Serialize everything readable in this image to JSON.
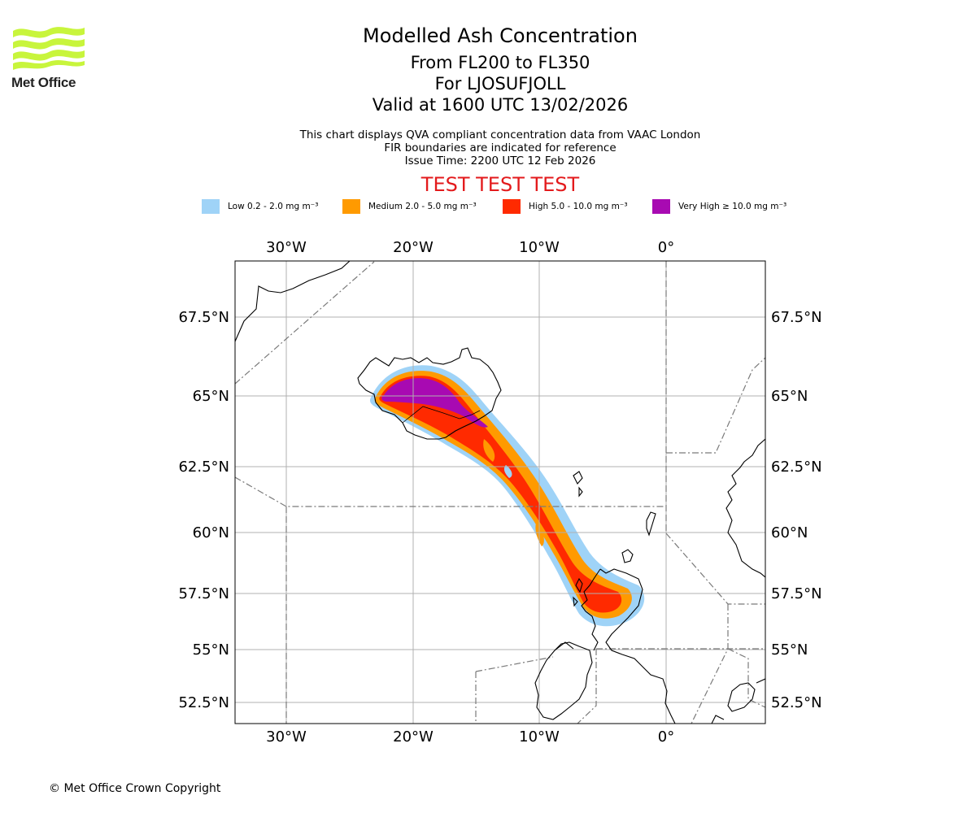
{
  "logo": {
    "text": "Met Office",
    "color": "#c8f53c"
  },
  "title": "Modelled Ash Concentration",
  "flight_levels": "From FL200 to FL350",
  "volcano": "For LJOSUFJOLL",
  "valid": "Valid at 1600 UTC 13/02/2026",
  "info": [
    "This chart displays QVA compliant concentration data from VAAC London",
    "FIR boundaries are indicated for reference",
    "Issue Time: 2200 UTC 12 Feb 2026"
  ],
  "test_banner": "TEST TEST TEST",
  "legend": [
    {
      "label": "Low 0.2 - 2.0 mg m⁻³",
      "color": "#9fd3f7"
    },
    {
      "label": "Medium 2.0 - 5.0 mg m⁻³",
      "color": "#ff9a00"
    },
    {
      "label": "High 5.0 - 10.0 mg m⁻³",
      "color": "#ff2a00"
    },
    {
      "label": "Very High ≥ 10.0 mg m⁻³",
      "color": "#a80ab2"
    }
  ],
  "longitude_labels": [
    "30°W",
    "20°W",
    "10°W",
    "0°"
  ],
  "latitude_labels": [
    "67.5°N",
    "65°N",
    "62.5°N",
    "60°N",
    "57.5°N",
    "55°N",
    "52.5°N"
  ],
  "copyright": "© Met Office Crown Copyright"
}
